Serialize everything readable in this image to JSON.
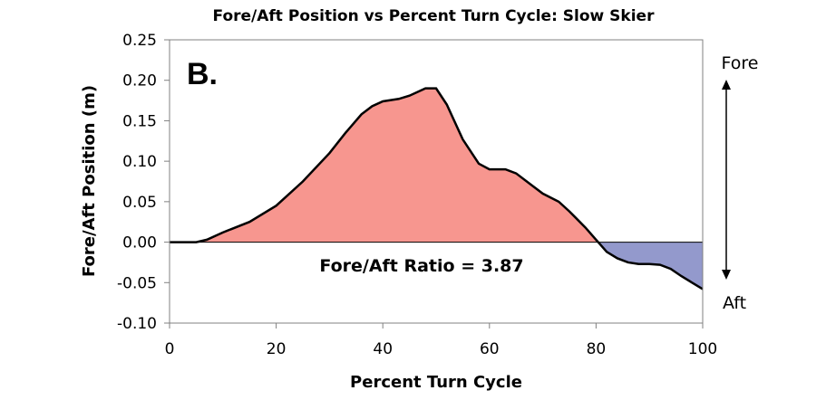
{
  "chart_data": {
    "type": "area",
    "title": "Fore/Aft Position vs Percent Turn Cycle: Slow Skier",
    "xlabel": "Percent Turn Cycle",
    "ylabel": "Fore/Aft Position (m)",
    "xlim": [
      0,
      100
    ],
    "ylim": [
      -0.1,
      0.25
    ],
    "xticks": [
      "0",
      "20",
      "40",
      "60",
      "80",
      "100"
    ],
    "yticks": [
      "-0.10",
      "-0.05",
      "0.00",
      "0.05",
      "0.10",
      "0.15",
      "0.20",
      "0.25"
    ],
    "grid": false,
    "series": [
      {
        "x": [
          0,
          5,
          7,
          10,
          15,
          20,
          25,
          30,
          33,
          36,
          38,
          40,
          43,
          45,
          48,
          50,
          52,
          55,
          58,
          60,
          63,
          65,
          68,
          70,
          73,
          75,
          78,
          80,
          82,
          84,
          86,
          88,
          90,
          92,
          94,
          96,
          98,
          100
        ],
        "values": [
          0.0,
          0.0,
          0.003,
          0.012,
          0.025,
          0.045,
          0.075,
          0.11,
          0.135,
          0.158,
          0.168,
          0.174,
          0.177,
          0.181,
          0.19,
          0.19,
          0.17,
          0.127,
          0.097,
          0.09,
          0.09,
          0.085,
          0.07,
          0.06,
          0.05,
          0.038,
          0.018,
          0.003,
          -0.012,
          -0.02,
          -0.025,
          -0.027,
          -0.027,
          -0.028,
          -0.033,
          -0.042,
          -0.05,
          -0.058
        ]
      }
    ],
    "fill_colors": {
      "positive": "#f7968f",
      "negative": "#9399cc"
    },
    "line_color": "#000000",
    "panel_label": "B.",
    "annotation": "Fore/Aft Ratio = 3.87",
    "direction_labels": {
      "top": "Fore",
      "bottom": "Aft"
    }
  }
}
